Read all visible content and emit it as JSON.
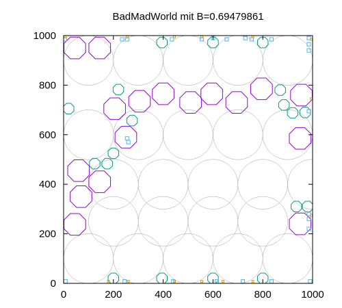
{
  "chart_data": {
    "type": "scatter",
    "title": "BadMadWorld mit B=0.69479861",
    "xlabel": "",
    "ylabel": "",
    "xlim": [
      0,
      1000
    ],
    "ylim": [
      0,
      1000
    ],
    "xticks": [
      0,
      200,
      400,
      600,
      800,
      1000
    ],
    "yticks": [
      0,
      200,
      400,
      600,
      800,
      1000
    ],
    "grid": false,
    "legend": "none",
    "colors": {
      "large": "#a0a0a0",
      "medium": "#9400d3",
      "small": "#009e73",
      "tiny": "#56b4e9",
      "micro": "#e69f00"
    },
    "series": [
      {
        "kind": "large",
        "shape": "circle",
        "r": 100,
        "points": [
          [
            100,
            900
          ],
          [
            300,
            900
          ],
          [
            500,
            900
          ],
          [
            700,
            900
          ],
          [
            900,
            900
          ],
          [
            100,
            600
          ],
          [
            300,
            600
          ],
          [
            500,
            600
          ],
          [
            700,
            600
          ],
          [
            900,
            600
          ],
          [
            200,
            400
          ],
          [
            400,
            400
          ],
          [
            600,
            400
          ],
          [
            800,
            400
          ],
          [
            1000,
            400
          ],
          [
            200,
            250
          ],
          [
            400,
            250
          ],
          [
            600,
            250
          ],
          [
            800,
            250
          ],
          [
            100,
            100
          ],
          [
            300,
            100
          ],
          [
            500,
            100
          ],
          [
            700,
            100
          ],
          [
            900,
            100
          ]
        ]
      },
      {
        "kind": "medium",
        "shape": "octagon",
        "r": 47,
        "points": [
          [
            45,
            950
          ],
          [
            145,
            950
          ],
          [
            400,
            765
          ],
          [
            510,
            730
          ],
          [
            595,
            765
          ],
          [
            695,
            730
          ],
          [
            795,
            785
          ],
          [
            955,
            760
          ],
          [
            205,
            705
          ],
          [
            305,
            735
          ],
          [
            250,
            590
          ],
          [
            950,
            585
          ],
          [
            60,
            455
          ],
          [
            145,
            410
          ],
          [
            70,
            350
          ],
          [
            45,
            238
          ],
          [
            950,
            240
          ]
        ]
      },
      {
        "kind": "small",
        "shape": "octagon",
        "r": 23,
        "points": [
          [
            395,
            972
          ],
          [
            600,
            972
          ],
          [
            800,
            972
          ],
          [
            220,
            782
          ],
          [
            870,
            780
          ],
          [
            20,
            705
          ],
          [
            885,
            720
          ],
          [
            920,
            688
          ],
          [
            970,
            690
          ],
          [
            275,
            657
          ],
          [
            200,
            525
          ],
          [
            125,
            483
          ],
          [
            175,
            483
          ],
          [
            935,
            310
          ],
          [
            980,
            310
          ],
          [
            200,
            20
          ],
          [
            395,
            20
          ],
          [
            600,
            20
          ],
          [
            800,
            20
          ]
        ]
      },
      {
        "kind": "tiny",
        "shape": "square",
        "r": 7,
        "points": [
          [
            5,
            985
          ],
          [
            235,
            985
          ],
          [
            255,
            985
          ],
          [
            435,
            985
          ],
          [
            555,
            985
          ],
          [
            600,
            990
          ],
          [
            655,
            985
          ],
          [
            730,
            990
          ],
          [
            755,
            985
          ],
          [
            835,
            985
          ],
          [
            985,
            990
          ],
          [
            985,
            965
          ],
          [
            985,
            940
          ],
          [
            260,
            570
          ],
          [
            255,
            585
          ],
          [
            985,
            695
          ],
          [
            985,
            280
          ],
          [
            985,
            260
          ],
          [
            985,
            220
          ],
          [
            8,
            8
          ],
          [
            245,
            8
          ],
          [
            440,
            8
          ],
          [
            615,
            8
          ],
          [
            720,
            8
          ],
          [
            835,
            8
          ],
          [
            990,
            8
          ]
        ]
      },
      {
        "kind": "micro",
        "shape": "square",
        "r": 4,
        "points": [
          [
            5,
            995
          ],
          [
            255,
            995
          ],
          [
            445,
            995
          ],
          [
            555,
            995
          ],
          [
            760,
            995
          ],
          [
            995,
            985
          ],
          [
            180,
            8
          ],
          [
            260,
            8
          ],
          [
            445,
            8
          ],
          [
            555,
            8
          ],
          [
            640,
            8
          ],
          [
            760,
            8
          ],
          [
            995,
            275
          ],
          [
            995,
            745
          ]
        ]
      }
    ]
  }
}
